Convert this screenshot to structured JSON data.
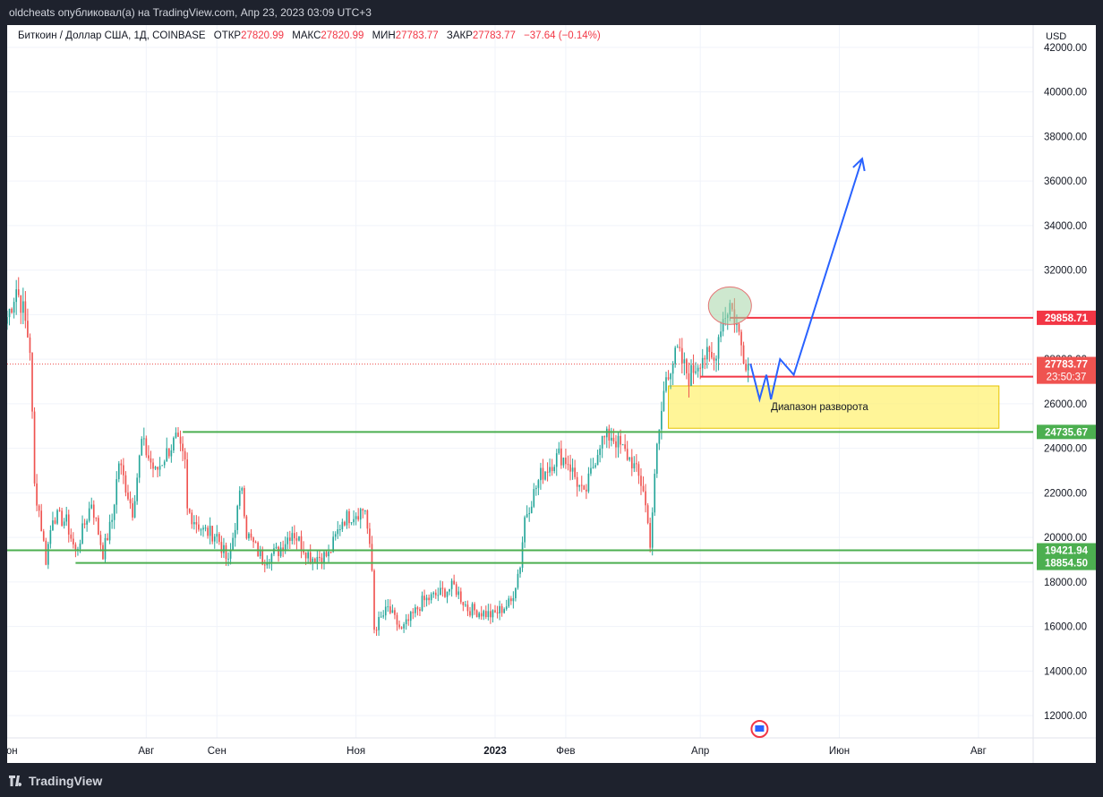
{
  "header": {
    "publisher_line": "oldcheats опубликовал(а) на TradingView.com, Апр 23, 2023 03:09 UTC+3"
  },
  "legend": {
    "symbol": "Биткоин / Доллар США, 1Д, COINBASE",
    "open_label": "ОТКР",
    "open_value": "27820.99",
    "high_label": "МАКС",
    "high_value": "27820.99",
    "low_label": "МИН",
    "low_value": "27783.77",
    "close_label": "ЗАКР",
    "close_value": "27783.77",
    "change": "−37.64 (−0.14%)"
  },
  "footer": {
    "brand": "TradingView"
  },
  "colors": {
    "up": "#26a69a",
    "down": "#ef5350",
    "level_red": "#f23645",
    "level_green": "#4caf50",
    "zone": "#fff176",
    "projection": "#2962ff"
  },
  "chart_data": {
    "type": "candlestick",
    "currency_label": "USD",
    "ylim": [
      11000,
      43000
    ],
    "y_ticks": [
      42000,
      40000,
      38000,
      36000,
      34000,
      32000,
      30000,
      28000,
      26000,
      24000,
      22000,
      20000,
      18000,
      16000,
      14000,
      12000
    ],
    "y_tick_labels": [
      "42000.00",
      "40000.00",
      "38000.00",
      "36000.00",
      "34000.00",
      "32000.00",
      "30000.00",
      "28000.00",
      "26000.00",
      "24000.00",
      "22000.00",
      "20000.00",
      "18000.00",
      "16000.00",
      "14000.00",
      "12000.00"
    ],
    "x_range": [
      "2022-06-01",
      "2023-08-25"
    ],
    "x_ticks": [
      {
        "date": "2022-06-01",
        "label": "Июн",
        "bold": false
      },
      {
        "date": "2022-08-01",
        "label": "Авг",
        "bold": false
      },
      {
        "date": "2022-09-01",
        "label": "Сен",
        "bold": false
      },
      {
        "date": "2022-11-01",
        "label": "Ноя",
        "bold": false
      },
      {
        "date": "2023-01-01",
        "label": "2023",
        "bold": true
      },
      {
        "date": "2023-02-01",
        "label": "Фев",
        "bold": false
      },
      {
        "date": "2023-04-01",
        "label": "Апр",
        "bold": false
      },
      {
        "date": "2023-06-01",
        "label": "Июн",
        "bold": false
      },
      {
        "date": "2023-08-01",
        "label": "Авг",
        "bold": false
      }
    ],
    "series_anchors": [
      {
        "date": "2022-06-01",
        "close": 29900
      },
      {
        "date": "2022-06-03",
        "close": 30500
      },
      {
        "date": "2022-06-05",
        "close": 31200
      },
      {
        "date": "2022-06-08",
        "close": 30200
      },
      {
        "date": "2022-06-11",
        "close": 28500
      },
      {
        "date": "2022-06-13",
        "close": 22300
      },
      {
        "date": "2022-06-15",
        "close": 21200
      },
      {
        "date": "2022-06-18",
        "close": 19000
      },
      {
        "date": "2022-06-21",
        "close": 21000
      },
      {
        "date": "2022-06-27",
        "close": 20700
      },
      {
        "date": "2022-07-01",
        "close": 19300
      },
      {
        "date": "2022-07-08",
        "close": 21600
      },
      {
        "date": "2022-07-13",
        "close": 19300
      },
      {
        "date": "2022-07-17",
        "close": 20800
      },
      {
        "date": "2022-07-20",
        "close": 23400
      },
      {
        "date": "2022-07-26",
        "close": 21200
      },
      {
        "date": "2022-07-30",
        "close": 24300
      },
      {
        "date": "2022-08-05",
        "close": 22900
      },
      {
        "date": "2022-08-10",
        "close": 23800
      },
      {
        "date": "2022-08-14",
        "close": 24400
      },
      {
        "date": "2022-08-18",
        "close": 23300
      },
      {
        "date": "2022-08-19",
        "close": 21200
      },
      {
        "date": "2022-08-26",
        "close": 20300
      },
      {
        "date": "2022-09-01",
        "close": 20100
      },
      {
        "date": "2022-09-06",
        "close": 18800
      },
      {
        "date": "2022-09-12",
        "close": 22400
      },
      {
        "date": "2022-09-14",
        "close": 20200
      },
      {
        "date": "2022-09-21",
        "close": 19000
      },
      {
        "date": "2022-09-28",
        "close": 19400
      },
      {
        "date": "2022-10-04",
        "close": 20300
      },
      {
        "date": "2022-10-12",
        "close": 19100
      },
      {
        "date": "2022-10-20",
        "close": 19200
      },
      {
        "date": "2022-10-26",
        "close": 20800
      },
      {
        "date": "2022-11-05",
        "close": 21300
      },
      {
        "date": "2022-11-08",
        "close": 18500
      },
      {
        "date": "2022-11-09",
        "close": 15900
      },
      {
        "date": "2022-11-15",
        "close": 16800
      },
      {
        "date": "2022-11-21",
        "close": 15800
      },
      {
        "date": "2022-11-30",
        "close": 17100
      },
      {
        "date": "2022-12-14",
        "close": 17800
      },
      {
        "date": "2022-12-20",
        "close": 16800
      },
      {
        "date": "2022-12-31",
        "close": 16500
      },
      {
        "date": "2023-01-08",
        "close": 17100
      },
      {
        "date": "2023-01-12",
        "close": 18800
      },
      {
        "date": "2023-01-14",
        "close": 20900
      },
      {
        "date": "2023-01-21",
        "close": 22800
      },
      {
        "date": "2023-01-29",
        "close": 23700
      },
      {
        "date": "2023-02-02",
        "close": 23400
      },
      {
        "date": "2023-02-09",
        "close": 21800
      },
      {
        "date": "2023-02-16",
        "close": 24300
      },
      {
        "date": "2023-02-21",
        "close": 24600
      },
      {
        "date": "2023-03-02",
        "close": 23400
      },
      {
        "date": "2023-03-07",
        "close": 22200
      },
      {
        "date": "2023-03-10",
        "close": 19800
      },
      {
        "date": "2023-03-13",
        "close": 24000
      },
      {
        "date": "2023-03-17",
        "close": 27300
      },
      {
        "date": "2023-03-22",
        "close": 28300
      },
      {
        "date": "2023-03-27",
        "close": 27200
      },
      {
        "date": "2023-04-02",
        "close": 28200
      },
      {
        "date": "2023-04-07",
        "close": 27900
      },
      {
        "date": "2023-04-10",
        "close": 29600
      },
      {
        "date": "2023-04-14",
        "close": 30500
      },
      {
        "date": "2023-04-17",
        "close": 29500
      },
      {
        "date": "2023-04-20",
        "close": 28200
      },
      {
        "date": "2023-04-22",
        "close": 27783.77
      }
    ],
    "levels": [
      {
        "value": 29858.71,
        "label": "29858.71",
        "color": "#f23645",
        "from": "2023-04-14"
      },
      {
        "value": 27215.87,
        "label": "27215.87",
        "color": "#f23645",
        "from": "2023-04-01"
      },
      {
        "value": 24735.67,
        "label": "24735.67",
        "color": "#4caf50",
        "from": "2022-08-17"
      },
      {
        "value": 19421.94,
        "label": "19421.94",
        "color": "#4caf50",
        "from": "2022-06-01"
      },
      {
        "value": 18854.5,
        "label": "18854.50",
        "color": "#4caf50",
        "from": "2022-07-01"
      }
    ],
    "last_price": {
      "value": 27783.77,
      "label": "27783.77",
      "countdown": "23:50:37"
    },
    "zone": {
      "from": "2023-03-18",
      "to": "2023-08-10",
      "top": 26800,
      "bottom": 24900,
      "label": "Диапазон разворота"
    },
    "projection": [
      {
        "date": "2023-04-23",
        "value": 27800
      },
      {
        "date": "2023-04-27",
        "value": 26200
      },
      {
        "date": "2023-04-30",
        "value": 27300
      },
      {
        "date": "2023-05-02",
        "value": 26200
      },
      {
        "date": "2023-05-06",
        "value": 28000
      },
      {
        "date": "2023-05-12",
        "value": 27300
      },
      {
        "date": "2023-06-11",
        "value": 37000
      }
    ],
    "highlight": {
      "date": "2023-04-14",
      "value": 30400
    }
  }
}
